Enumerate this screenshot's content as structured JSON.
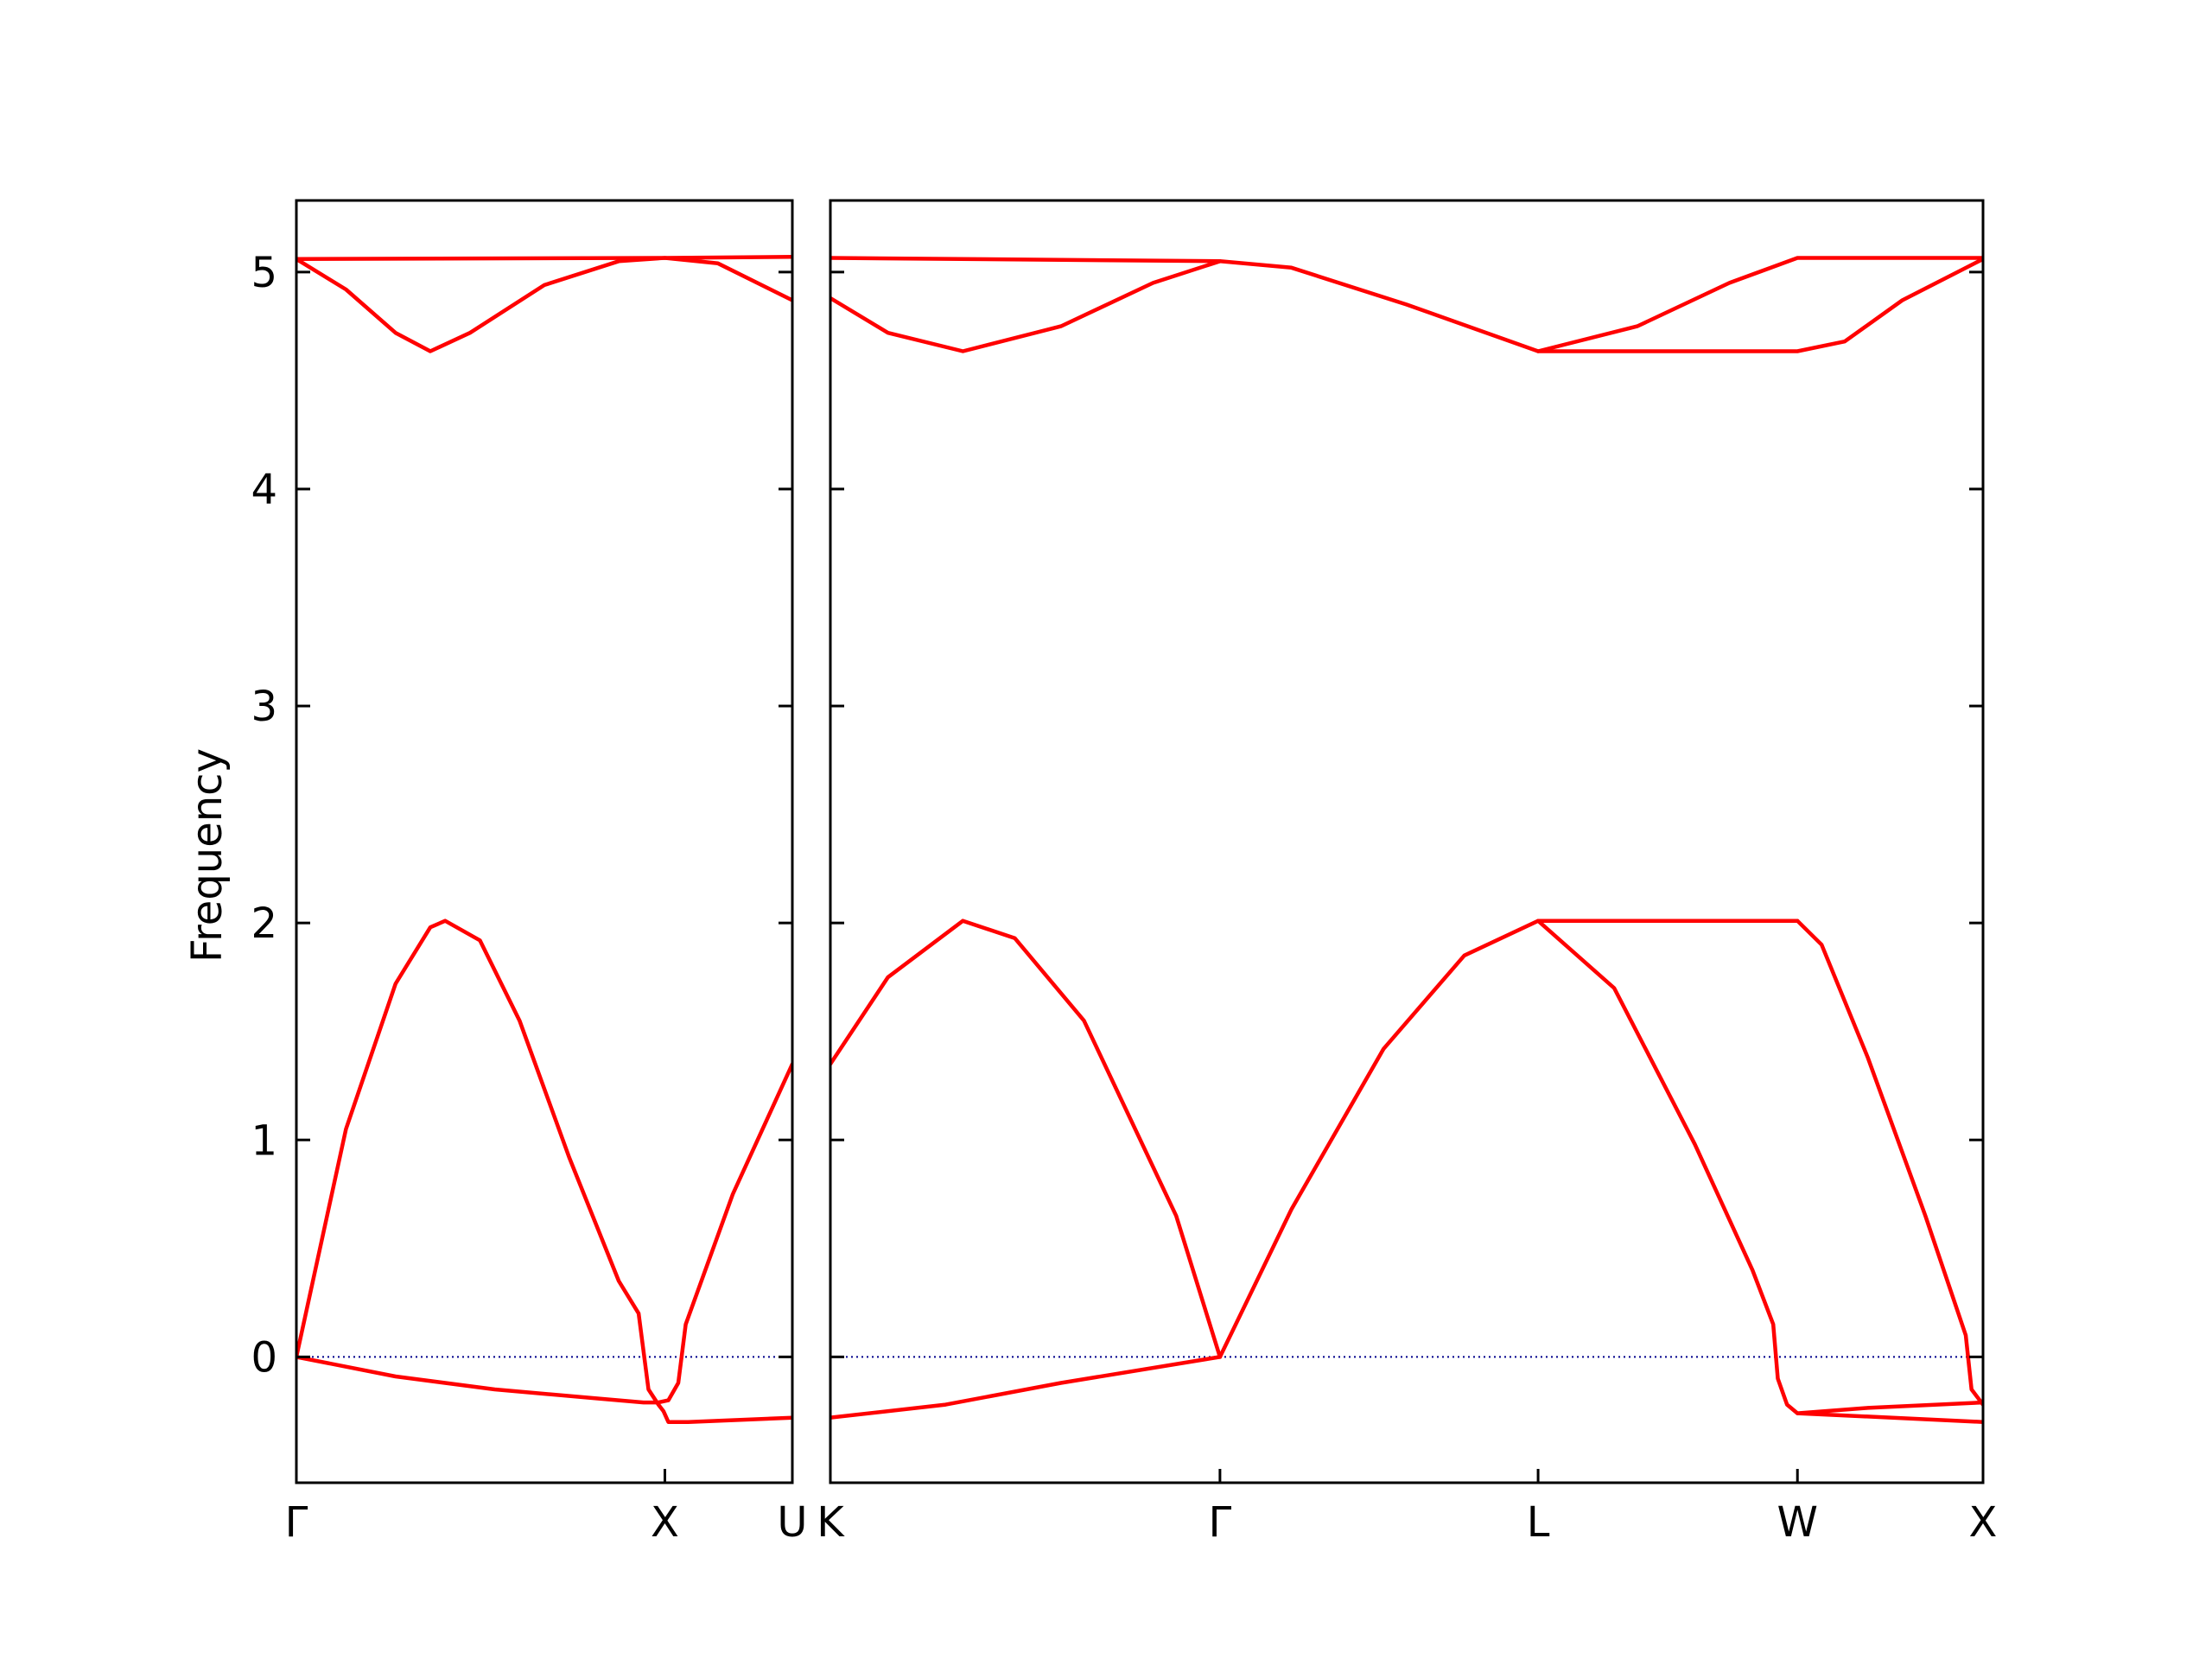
{
  "chart_data": {
    "type": "line",
    "ylabel": "Frequency",
    "ylim": [
      -0.58,
      5.33
    ],
    "yticks": [
      0,
      1,
      2,
      3,
      4,
      5
    ],
    "colors": {
      "band": "#ff0000",
      "zero_line": "#00008b",
      "axes": "#000000"
    },
    "panels": [
      {
        "xlim": [
          0,
          1
        ],
        "ticks": [
          {
            "x": 0,
            "label": "Γ"
          },
          {
            "x": 0.743,
            "label": "X"
          },
          {
            "x": 1,
            "label": "U"
          }
        ],
        "series": [
          {
            "points": [
              [
                0,
                5.06
              ],
              [
                0.743,
                5.065
              ],
              [
                1,
                5.07
              ]
            ]
          },
          {
            "points": [
              [
                0,
                5.06
              ],
              [
                0.1,
                4.92
              ],
              [
                0.2,
                4.72
              ],
              [
                0.27,
                4.635
              ],
              [
                0.35,
                4.72
              ],
              [
                0.5,
                4.94
              ],
              [
                0.65,
                5.05
              ],
              [
                0.743,
                5.065
              ],
              [
                0.85,
                5.04
              ],
              [
                1,
                4.87
              ]
            ]
          },
          {
            "points": [
              [
                0,
                0
              ],
              [
                0.1,
                1.05
              ],
              [
                0.2,
                1.72
              ],
              [
                0.27,
                1.98
              ],
              [
                0.3,
                2.01
              ],
              [
                0.37,
                1.92
              ],
              [
                0.45,
                1.55
              ],
              [
                0.55,
                0.92
              ],
              [
                0.65,
                0.35
              ],
              [
                0.69,
                0.2
              ],
              [
                0.71,
                -0.15
              ],
              [
                0.73,
                -0.22
              ],
              [
                0.74,
                -0.25
              ],
              [
                0.75,
                -0.3
              ],
              [
                0.79,
                -0.3
              ],
              [
                1,
                -0.28
              ]
            ]
          },
          {
            "points": [
              [
                0,
                0
              ],
              [
                0.2,
                -0.09
              ],
              [
                0.4,
                -0.15
              ],
              [
                0.6,
                -0.19
              ],
              [
                0.7,
                -0.21
              ],
              [
                0.73,
                -0.21
              ],
              [
                0.75,
                -0.2
              ],
              [
                0.77,
                -0.12
              ],
              [
                0.785,
                0.15
              ],
              [
                0.88,
                0.75
              ],
              [
                1,
                1.35
              ]
            ]
          }
        ]
      },
      {
        "xlim": [
          0,
          1
        ],
        "ticks": [
          {
            "x": 0,
            "label": "K"
          },
          {
            "x": 0.338,
            "label": "Γ"
          },
          {
            "x": 0.614,
            "label": "L"
          },
          {
            "x": 0.839,
            "label": "W"
          },
          {
            "x": 1,
            "label": "X"
          }
        ],
        "series": [
          {
            "points": [
              [
                0,
                5.065
              ],
              [
                0.338,
                5.05
              ]
            ]
          },
          {
            "points": [
              [
                0,
                4.88
              ],
              [
                0.05,
                4.72
              ],
              [
                0.115,
                4.635
              ],
              [
                0.2,
                4.75
              ],
              [
                0.28,
                4.95
              ],
              [
                0.338,
                5.05
              ],
              [
                0.4,
                5.02
              ],
              [
                0.5,
                4.85
              ],
              [
                0.614,
                4.635
              ],
              [
                0.7,
                4.75
              ],
              [
                0.78,
                4.95
              ],
              [
                0.839,
                5.065
              ],
              [
                1,
                5.065
              ]
            ]
          },
          {
            "points": [
              [
                0.614,
                4.635
              ],
              [
                0.839,
                4.635
              ],
              [
                0.88,
                4.68
              ],
              [
                0.93,
                4.87
              ],
              [
                1,
                5.06
              ]
            ]
          },
          {
            "points": [
              [
                0,
                1.35
              ],
              [
                0.05,
                1.75
              ],
              [
                0.115,
                2.01
              ],
              [
                0.16,
                1.93
              ],
              [
                0.22,
                1.55
              ],
              [
                0.3,
                0.65
              ],
              [
                0.338,
                0
              ]
            ]
          },
          {
            "points": [
              [
                0.338,
                0
              ],
              [
                0.4,
                0.68
              ],
              [
                0.48,
                1.42
              ],
              [
                0.55,
                1.85
              ],
              [
                0.614,
                2.01
              ],
              [
                0.839,
                2.01
              ]
            ]
          },
          {
            "points": [
              [
                0.614,
                2.01
              ],
              [
                0.68,
                1.7
              ],
              [
                0.75,
                0.98
              ],
              [
                0.8,
                0.4
              ],
              [
                0.818,
                0.15
              ],
              [
                0.822,
                -0.1
              ],
              [
                0.83,
                -0.22
              ],
              [
                0.839,
                -0.26
              ],
              [
                1,
                -0.3
              ]
            ]
          },
          {
            "points": [
              [
                0.839,
                2.01
              ],
              [
                0.86,
                1.9
              ],
              [
                0.9,
                1.38
              ],
              [
                0.95,
                0.65
              ],
              [
                0.985,
                0.1
              ],
              [
                0.99,
                -0.15
              ],
              [
                1,
                -0.22
              ]
            ]
          },
          {
            "points": [
              [
                0,
                -0.28
              ],
              [
                0.1,
                -0.22
              ],
              [
                0.2,
                -0.12
              ],
              [
                0.338,
                0
              ]
            ]
          },
          {
            "points": [
              [
                0.839,
                -0.26
              ],
              [
                0.9,
                -0.235
              ],
              [
                1,
                -0.21
              ]
            ]
          }
        ]
      }
    ]
  }
}
